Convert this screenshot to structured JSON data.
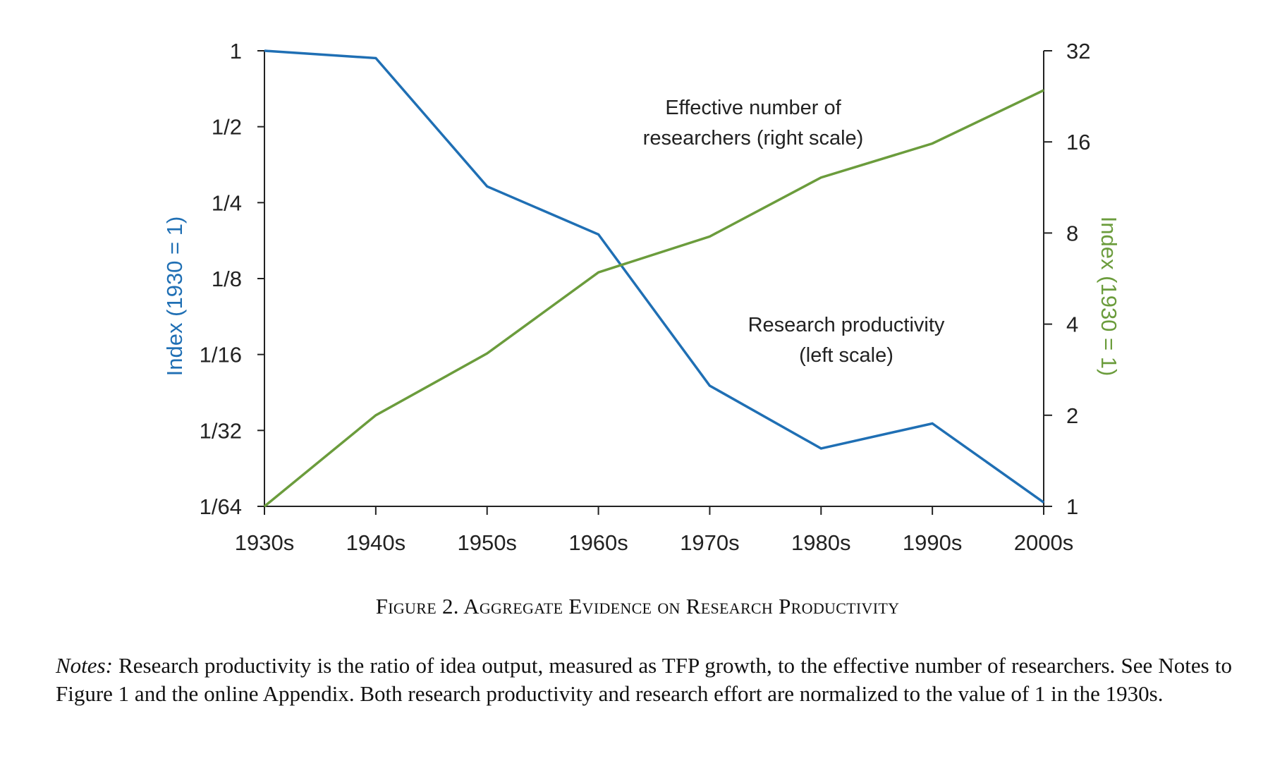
{
  "chart_data": {
    "type": "line",
    "categories": [
      "1930s",
      "1940s",
      "1950s",
      "1960s",
      "1970s",
      "1980s",
      "1990s",
      "2000s"
    ],
    "left_axis": {
      "label": "Index (1930 = 1)",
      "scale": "log2",
      "ticks": [
        1,
        0.5,
        0.25,
        0.125,
        0.0625,
        0.03125,
        0.015625
      ],
      "tick_labels": [
        "1",
        "1/2",
        "1/4",
        "1/8",
        "1/16",
        "1/32",
        "1/64"
      ],
      "ylim": [
        0.015625,
        1
      ],
      "color": "#1f6fb4"
    },
    "right_axis": {
      "label": "Index (1930 = 1)",
      "scale": "log2",
      "ticks": [
        1,
        2,
        4,
        8,
        16,
        32
      ],
      "tick_labels": [
        "1",
        "2",
        "4",
        "8",
        "16",
        "32"
      ],
      "ylim": [
        1,
        32
      ],
      "color": "#6b9c3c"
    },
    "series": [
      {
        "name": "Research productivity (left scale)",
        "axis": "left",
        "color": "#1f6fb4",
        "values": [
          1,
          0.935,
          0.29,
          0.187,
          0.047,
          0.0265,
          0.0333,
          0.0162
        ]
      },
      {
        "name": "Effective number of researchers (right scale)",
        "axis": "right",
        "color": "#6b9c3c",
        "values": [
          1,
          2.0,
          3.2,
          5.93,
          7.79,
          12.2,
          15.8,
          23.7
        ]
      }
    ],
    "annotations": [
      {
        "series": "Effective number of researchers (right scale)",
        "lines": [
          "Effective number of",
          "researchers (right scale)"
        ]
      },
      {
        "series": "Research productivity (left scale)",
        "lines": [
          "Research productivity",
          "(left scale)"
        ]
      }
    ]
  },
  "figure": {
    "caption": "Figure 2. Aggregate Evidence on Research Productivity",
    "notes_label": "Notes:",
    "notes_text": " Research productivity is the ratio of idea output, measured as TFP growth, to the effective number of researchers. See Notes to Figure 1 and the online Appendix. Both research productivity and research effort are normalized to the value of 1 in the 1930s."
  }
}
